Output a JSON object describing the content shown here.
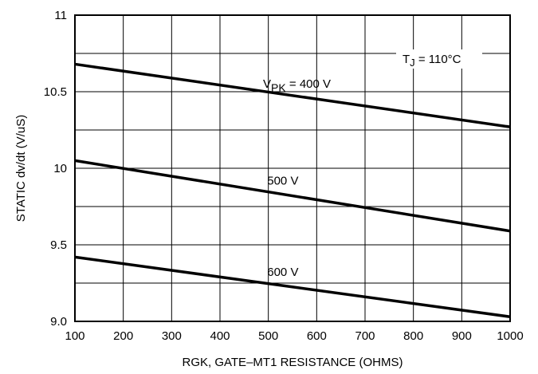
{
  "chart_data": {
    "type": "line",
    "title": "",
    "xlabel": "RGK, GATE–MT1 RESISTANCE (OHMS)",
    "ylabel": "STATIC dv/dt (V/uS)",
    "xlim": [
      100,
      1000
    ],
    "ylim": [
      9.0,
      11.0
    ],
    "grid": true,
    "x_ticks": [
      "100",
      "200",
      "300",
      "400",
      "500",
      "600",
      "700",
      "800",
      "900",
      "1000"
    ],
    "y_ticks": [
      "9.0",
      "9.5",
      "10",
      "10.5",
      "11"
    ],
    "annotation": {
      "main": "T",
      "sub": "J",
      "rest": " = 110°C"
    },
    "series": [
      {
        "name": "400 V",
        "label_prefix": "V",
        "label_sub": "PK",
        "label_main": " = 400 V",
        "x": [
          100,
          1000
        ],
        "y": [
          10.68,
          10.27
        ]
      },
      {
        "name": "500 V",
        "label_prefix": "",
        "label_sub": "",
        "label_main": "500 V",
        "x": [
          100,
          1000
        ],
        "y": [
          10.05,
          9.59
        ]
      },
      {
        "name": "600 V",
        "label_prefix": "",
        "label_sub": "",
        "label_main": "600 V",
        "x": [
          100,
          1000
        ],
        "y": [
          9.42,
          9.03
        ]
      }
    ]
  }
}
